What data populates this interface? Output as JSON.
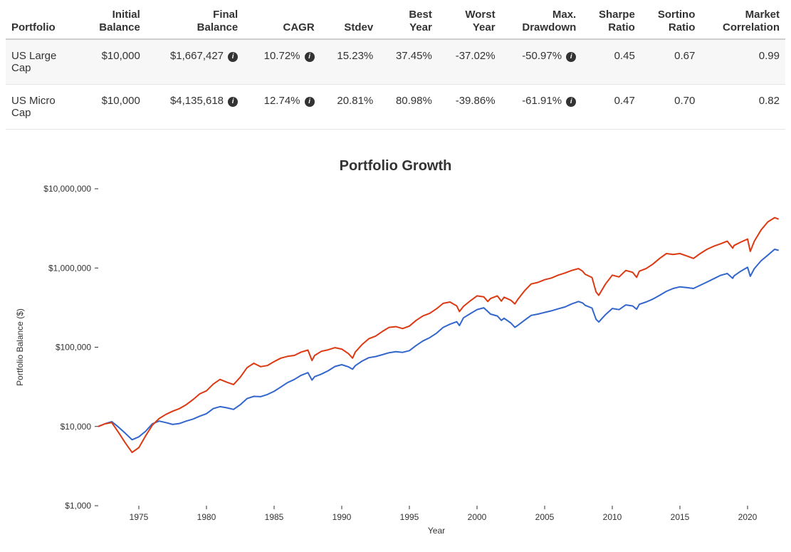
{
  "table": {
    "columns": [
      "Portfolio",
      "Initial Balance",
      "Final Balance",
      "CAGR",
      "Stdev",
      "Best Year",
      "Worst Year",
      "Max. Drawdown",
      "Sharpe Ratio",
      "Sortino Ratio",
      "Market Correlation"
    ],
    "info_columns": [
      "Final Balance",
      "CAGR",
      "Max. Drawdown"
    ],
    "rows": [
      {
        "name": "US Large Cap",
        "cells": [
          "$10,000",
          "$1,667,427",
          "10.72%",
          "15.23%",
          "37.45%",
          "-37.02%",
          "-50.97%",
          "0.45",
          "0.67",
          "0.99"
        ],
        "alt": true
      },
      {
        "name": "US Micro Cap",
        "cells": [
          "$10,000",
          "$4,135,618",
          "12.74%",
          "20.81%",
          "80.98%",
          "-39.86%",
          "-61.91%",
          "0.47",
          "0.70",
          "0.82"
        ],
        "alt": false
      }
    ]
  },
  "chart": {
    "title": "Portfolio Growth",
    "x_label": "Year",
    "y_label": "Portfolio Balance ($)",
    "x_ticks": [
      1975,
      1980,
      1985,
      1990,
      1995,
      2000,
      2005,
      2010,
      2015,
      2020
    ],
    "x_domain": [
      1972,
      2022
    ],
    "y_ticks": [
      1000,
      10000,
      100000,
      1000000,
      10000000
    ],
    "y_tick_labels": [
      "$1,000",
      "$10,000",
      "$100,000",
      "$1,000,000",
      "$10,000,000"
    ],
    "y_log_domain": [
      1000,
      10000000
    ],
    "background_color": "#ffffff",
    "tick_color": "#333333",
    "axis_color": "#cccccc",
    "line_width": 2,
    "font_size_ticks": 12,
    "series": [
      {
        "name": "US Large Cap",
        "color": "#3366cc",
        "points": [
          [
            1972.0,
            10000
          ],
          [
            1972.5,
            10800
          ],
          [
            1973.0,
            11500
          ],
          [
            1973.5,
            9800
          ],
          [
            1974.0,
            8200
          ],
          [
            1974.5,
            6800
          ],
          [
            1975.0,
            7400
          ],
          [
            1975.5,
            8700
          ],
          [
            1976.0,
            10800
          ],
          [
            1976.5,
            11700
          ],
          [
            1977.0,
            11200
          ],
          [
            1977.5,
            10600
          ],
          [
            1978.0,
            10900
          ],
          [
            1978.5,
            11700
          ],
          [
            1979.0,
            12400
          ],
          [
            1979.5,
            13500
          ],
          [
            1980.0,
            14500
          ],
          [
            1980.5,
            16800
          ],
          [
            1981.0,
            17800
          ],
          [
            1981.5,
            17200
          ],
          [
            1982.0,
            16400
          ],
          [
            1982.5,
            18800
          ],
          [
            1983.0,
            22500
          ],
          [
            1983.5,
            24000
          ],
          [
            1984.0,
            23800
          ],
          [
            1984.5,
            25300
          ],
          [
            1985.0,
            27800
          ],
          [
            1985.5,
            31500
          ],
          [
            1986.0,
            35800
          ],
          [
            1986.5,
            39200
          ],
          [
            1987.0,
            44200
          ],
          [
            1987.5,
            47800
          ],
          [
            1987.8,
            38500
          ],
          [
            1988.0,
            42500
          ],
          [
            1988.5,
            45800
          ],
          [
            1989.0,
            50500
          ],
          [
            1989.5,
            57200
          ],
          [
            1990.0,
            60200
          ],
          [
            1990.5,
            56500
          ],
          [
            1990.8,
            52800
          ],
          [
            1991.0,
            58500
          ],
          [
            1991.5,
            66800
          ],
          [
            1992.0,
            73800
          ],
          [
            1992.5,
            76200
          ],
          [
            1993.0,
            80500
          ],
          [
            1993.5,
            85200
          ],
          [
            1994.0,
            87800
          ],
          [
            1994.5,
            86200
          ],
          [
            1995.0,
            90500
          ],
          [
            1995.5,
            105000
          ],
          [
            1996.0,
            120000
          ],
          [
            1996.5,
            132000
          ],
          [
            1997.0,
            150000
          ],
          [
            1997.5,
            178000
          ],
          [
            1998.0,
            195000
          ],
          [
            1998.5,
            210000
          ],
          [
            1998.7,
            188000
          ],
          [
            1999.0,
            235000
          ],
          [
            1999.5,
            265000
          ],
          [
            2000.0,
            298000
          ],
          [
            2000.5,
            315000
          ],
          [
            2000.8,
            282000
          ],
          [
            2001.0,
            262000
          ],
          [
            2001.5,
            248000
          ],
          [
            2001.8,
            218000
          ],
          [
            2002.0,
            232000
          ],
          [
            2002.5,
            202000
          ],
          [
            2002.8,
            178000
          ],
          [
            2003.0,
            188000
          ],
          [
            2003.5,
            218000
          ],
          [
            2004.0,
            252000
          ],
          [
            2004.5,
            262000
          ],
          [
            2005.0,
            275000
          ],
          [
            2005.5,
            288000
          ],
          [
            2006.0,
            305000
          ],
          [
            2006.5,
            322000
          ],
          [
            2007.0,
            352000
          ],
          [
            2007.5,
            378000
          ],
          [
            2007.8,
            362000
          ],
          [
            2008.0,
            338000
          ],
          [
            2008.5,
            312000
          ],
          [
            2008.8,
            225000
          ],
          [
            2009.0,
            208000
          ],
          [
            2009.5,
            258000
          ],
          [
            2010.0,
            308000
          ],
          [
            2010.5,
            298000
          ],
          [
            2011.0,
            342000
          ],
          [
            2011.5,
            332000
          ],
          [
            2011.8,
            302000
          ],
          [
            2012.0,
            348000
          ],
          [
            2012.5,
            372000
          ],
          [
            2013.0,
            405000
          ],
          [
            2013.5,
            452000
          ],
          [
            2014.0,
            508000
          ],
          [
            2014.5,
            552000
          ],
          [
            2015.0,
            578000
          ],
          [
            2015.5,
            565000
          ],
          [
            2016.0,
            552000
          ],
          [
            2016.5,
            605000
          ],
          [
            2017.0,
            665000
          ],
          [
            2017.5,
            732000
          ],
          [
            2018.0,
            808000
          ],
          [
            2018.5,
            852000
          ],
          [
            2018.9,
            742000
          ],
          [
            2019.0,
            795000
          ],
          [
            2019.5,
            912000
          ],
          [
            2020.0,
            1020000
          ],
          [
            2020.2,
            785000
          ],
          [
            2020.5,
            982000
          ],
          [
            2021.0,
            1235000
          ],
          [
            2021.5,
            1452000
          ],
          [
            2022.0,
            1720000
          ],
          [
            2022.3,
            1667427
          ]
        ]
      },
      {
        "name": "US Micro Cap",
        "color": "#dc3912",
        "points": [
          [
            1972.0,
            10000
          ],
          [
            1972.5,
            10800
          ],
          [
            1973.0,
            11200
          ],
          [
            1973.5,
            8400
          ],
          [
            1974.0,
            6200
          ],
          [
            1974.5,
            4700
          ],
          [
            1975.0,
            5400
          ],
          [
            1975.5,
            7600
          ],
          [
            1976.0,
            10400
          ],
          [
            1976.5,
            12600
          ],
          [
            1977.0,
            14200
          ],
          [
            1977.5,
            15600
          ],
          [
            1978.0,
            16800
          ],
          [
            1978.5,
            18800
          ],
          [
            1979.0,
            21800
          ],
          [
            1979.5,
            25800
          ],
          [
            1980.0,
            28200
          ],
          [
            1980.5,
            34200
          ],
          [
            1981.0,
            39200
          ],
          [
            1981.5,
            36200
          ],
          [
            1982.0,
            33800
          ],
          [
            1982.5,
            41800
          ],
          [
            1983.0,
            55200
          ],
          [
            1983.5,
            62800
          ],
          [
            1984.0,
            56800
          ],
          [
            1984.5,
            58800
          ],
          [
            1985.0,
            65800
          ],
          [
            1985.5,
            72800
          ],
          [
            1986.0,
            76800
          ],
          [
            1986.5,
            78800
          ],
          [
            1987.0,
            86800
          ],
          [
            1987.5,
            92000
          ],
          [
            1987.8,
            68000
          ],
          [
            1988.0,
            78800
          ],
          [
            1988.5,
            88800
          ],
          [
            1989.0,
            92800
          ],
          [
            1989.5,
            98800
          ],
          [
            1990.0,
            94800
          ],
          [
            1990.5,
            82800
          ],
          [
            1990.8,
            72800
          ],
          [
            1991.0,
            86800
          ],
          [
            1991.5,
            108000
          ],
          [
            1992.0,
            128000
          ],
          [
            1992.5,
            138000
          ],
          [
            1993.0,
            158000
          ],
          [
            1993.5,
            178000
          ],
          [
            1994.0,
            182000
          ],
          [
            1994.5,
            172000
          ],
          [
            1995.0,
            185000
          ],
          [
            1995.5,
            218000
          ],
          [
            1996.0,
            248000
          ],
          [
            1996.5,
            268000
          ],
          [
            1997.0,
            305000
          ],
          [
            1997.5,
            358000
          ],
          [
            1998.0,
            372000
          ],
          [
            1998.5,
            332000
          ],
          [
            1998.7,
            282000
          ],
          [
            1999.0,
            328000
          ],
          [
            1999.5,
            385000
          ],
          [
            2000.0,
            445000
          ],
          [
            2000.5,
            432000
          ],
          [
            2000.8,
            378000
          ],
          [
            2001.0,
            412000
          ],
          [
            2001.5,
            445000
          ],
          [
            2001.8,
            382000
          ],
          [
            2002.0,
            428000
          ],
          [
            2002.5,
            392000
          ],
          [
            2002.8,
            352000
          ],
          [
            2003.0,
            398000
          ],
          [
            2003.5,
            512000
          ],
          [
            2004.0,
            628000
          ],
          [
            2004.5,
            658000
          ],
          [
            2005.0,
            712000
          ],
          [
            2005.5,
            748000
          ],
          [
            2006.0,
            812000
          ],
          [
            2006.5,
            865000
          ],
          [
            2007.0,
            932000
          ],
          [
            2007.5,
            982000
          ],
          [
            2007.8,
            912000
          ],
          [
            2008.0,
            832000
          ],
          [
            2008.5,
            758000
          ],
          [
            2008.8,
            498000
          ],
          [
            2009.0,
            452000
          ],
          [
            2009.5,
            628000
          ],
          [
            2010.0,
            812000
          ],
          [
            2010.5,
            772000
          ],
          [
            2011.0,
            932000
          ],
          [
            2011.5,
            882000
          ],
          [
            2011.8,
            762000
          ],
          [
            2012.0,
            912000
          ],
          [
            2012.5,
            982000
          ],
          [
            2013.0,
            1120000
          ],
          [
            2013.5,
            1320000
          ],
          [
            2014.0,
            1520000
          ],
          [
            2014.5,
            1480000
          ],
          [
            2015.0,
            1520000
          ],
          [
            2015.5,
            1420000
          ],
          [
            2016.0,
            1320000
          ],
          [
            2016.5,
            1520000
          ],
          [
            2017.0,
            1720000
          ],
          [
            2017.5,
            1880000
          ],
          [
            2018.0,
            2020000
          ],
          [
            2018.5,
            2180000
          ],
          [
            2018.9,
            1780000
          ],
          [
            2019.0,
            1920000
          ],
          [
            2019.5,
            2120000
          ],
          [
            2020.0,
            2320000
          ],
          [
            2020.2,
            1620000
          ],
          [
            2020.5,
            2180000
          ],
          [
            2021.0,
            3020000
          ],
          [
            2021.5,
            3820000
          ],
          [
            2022.0,
            4320000
          ],
          [
            2022.3,
            4135618
          ]
        ]
      }
    ]
  }
}
